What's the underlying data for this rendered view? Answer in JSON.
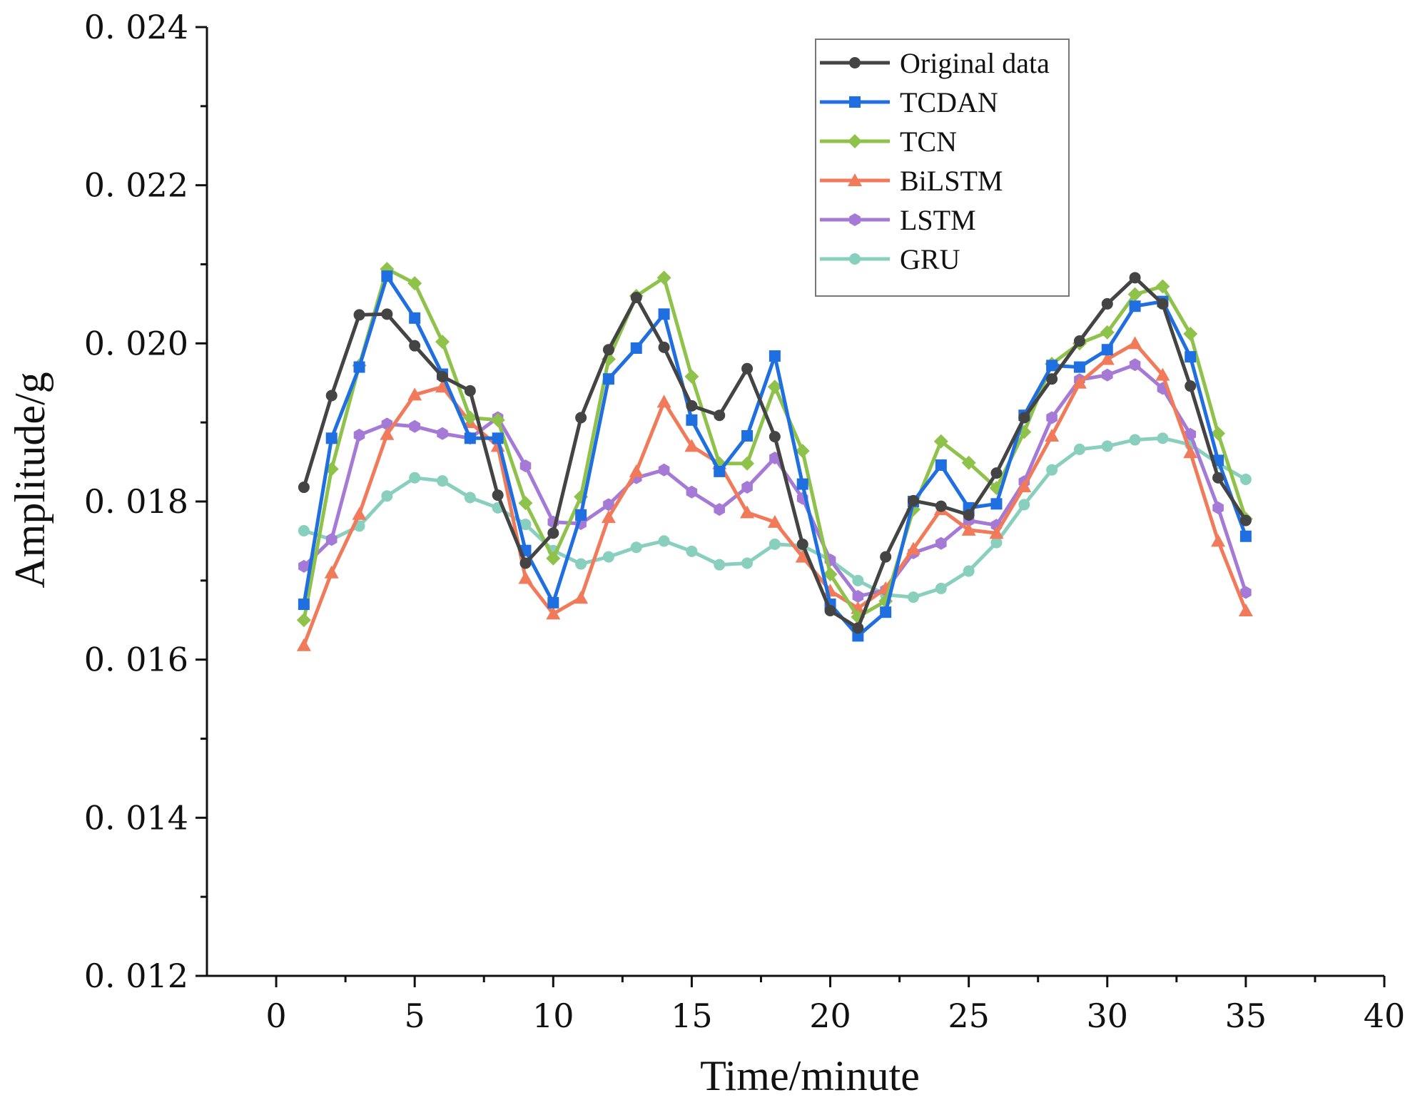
{
  "chart_data": {
    "type": "line",
    "title": "",
    "xlabel": "Time/minute",
    "ylabel": "Amplitude/g",
    "xlim": [
      -2.5,
      40
    ],
    "ylim": [
      0.012,
      0.024
    ],
    "xticks": [
      0,
      5,
      10,
      15,
      20,
      25,
      30,
      35,
      40
    ],
    "xtick_labels": [
      "0",
      "5",
      "10",
      "15",
      "20",
      "25",
      "30",
      "35",
      "40"
    ],
    "yticks": [
      0.012,
      0.014,
      0.016,
      0.018,
      0.02,
      0.022,
      0.024
    ],
    "ytick_labels": [
      "0. 012",
      "0. 014",
      "0. 016",
      "0. 018",
      "0. 020",
      "0. 022",
      "0. 024"
    ],
    "grid": false,
    "legend_position": "top-right",
    "x": [
      1,
      2,
      3,
      4,
      5,
      6,
      7,
      8,
      9,
      10,
      11,
      12,
      13,
      14,
      15,
      16,
      17,
      18,
      19,
      20,
      21,
      22,
      23,
      24,
      25,
      26,
      27,
      28,
      29,
      30,
      31,
      32,
      33,
      34,
      35
    ],
    "series": [
      {
        "name": "Original data",
        "color": "#444444",
        "marker": "circle",
        "values": [
          0.01818,
          0.01934,
          0.02036,
          0.02037,
          0.01997,
          0.01958,
          0.0194,
          0.01808,
          0.01722,
          0.0176,
          0.01906,
          0.01992,
          0.02058,
          0.01995,
          0.01921,
          0.01909,
          0.01968,
          0.01882,
          0.01746,
          0.01662,
          0.0164,
          0.0173,
          0.01801,
          0.01794,
          0.01783,
          0.01836,
          0.01906,
          0.01955,
          0.02003,
          0.0205,
          0.02083,
          0.0205,
          0.01946,
          0.0183,
          0.01776
        ]
      },
      {
        "name": "TCDAN",
        "color": "#1f6fe0",
        "marker": "square",
        "values": [
          0.0167,
          0.0188,
          0.0197,
          0.02085,
          0.02032,
          0.01961,
          0.0188,
          0.0188,
          0.01738,
          0.01672,
          0.01783,
          0.01955,
          0.01994,
          0.02037,
          0.01903,
          0.01838,
          0.01883,
          0.01984,
          0.01822,
          0.0167,
          0.0163,
          0.0166,
          0.018,
          0.01846,
          0.01792,
          0.01797,
          0.01909,
          0.01972,
          0.0197,
          0.01992,
          0.02047,
          0.02053,
          0.01983,
          0.01852,
          0.01756
        ]
      },
      {
        "name": "TCN",
        "color": "#8ec24a",
        "marker": "diamond",
        "values": [
          0.0165,
          0.01841,
          0.01972,
          0.02094,
          0.02076,
          0.02002,
          0.01906,
          0.01903,
          0.01798,
          0.01728,
          0.01806,
          0.0198,
          0.0206,
          0.02083,
          0.01958,
          0.01848,
          0.01848,
          0.01945,
          0.01864,
          0.01708,
          0.01654,
          0.01674,
          0.0179,
          0.01876,
          0.01849,
          0.01817,
          0.01888,
          0.01974,
          0.02,
          0.02014,
          0.02062,
          0.02072,
          0.02012,
          0.01886,
          0.01778
        ]
      },
      {
        "name": "BiLSTM",
        "color": "#f07a5a",
        "marker": "triangle",
        "values": [
          0.01618,
          0.0171,
          0.01784,
          0.01885,
          0.01935,
          0.01945,
          0.019,
          0.0187,
          0.01703,
          0.01658,
          0.01678,
          0.0178,
          0.01838,
          0.01926,
          0.0187,
          0.01848,
          0.01786,
          0.01774,
          0.0173,
          0.01687,
          0.01665,
          0.0169,
          0.0174,
          0.0179,
          0.01764,
          0.0176,
          0.01819,
          0.01883,
          0.0195,
          0.0198,
          0.02,
          0.0196,
          0.01862,
          0.0175,
          0.01662
        ]
      },
      {
        "name": "LSTM",
        "color": "#a57ad6",
        "marker": "hexagon",
        "values": [
          0.01718,
          0.01752,
          0.01884,
          0.01898,
          0.01895,
          0.01886,
          0.0188,
          0.01906,
          0.01845,
          0.01774,
          0.01772,
          0.01796,
          0.0183,
          0.0184,
          0.01812,
          0.0179,
          0.01818,
          0.01855,
          0.01804,
          0.01726,
          0.0168,
          0.01688,
          0.01735,
          0.01747,
          0.01776,
          0.0177,
          0.01825,
          0.01906,
          0.01954,
          0.0196,
          0.01973,
          0.01943,
          0.01885,
          0.01792,
          0.01685
        ]
      },
      {
        "name": "GRU",
        "color": "#88cfbd",
        "marker": "circle",
        "values": [
          0.01763,
          0.01752,
          0.01769,
          0.01807,
          0.0183,
          0.01826,
          0.01805,
          0.01792,
          0.01771,
          0.01738,
          0.01721,
          0.0173,
          0.01742,
          0.0175,
          0.01737,
          0.0172,
          0.01722,
          0.01746,
          0.01744,
          0.01726,
          0.017,
          0.01682,
          0.01679,
          0.0169,
          0.01712,
          0.01748,
          0.01796,
          0.0184,
          0.01866,
          0.0187,
          0.01878,
          0.0188,
          0.01872,
          0.01848,
          0.01828
        ]
      }
    ]
  }
}
